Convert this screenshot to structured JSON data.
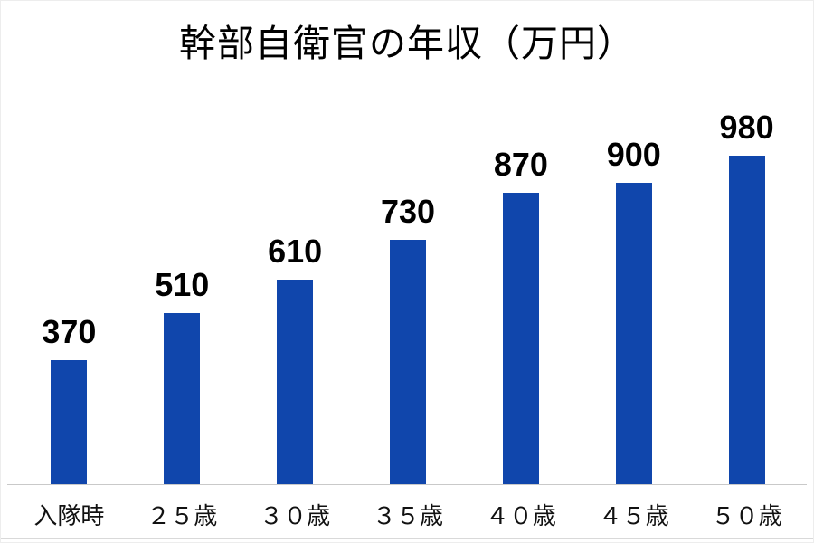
{
  "title": "幹部自衛官の年収（万円）",
  "colors": {
    "bar": "#1046ac",
    "axis_line": "#c9c9c9",
    "value_label": "#000000",
    "category_label": "#111111",
    "background": "#ffffff"
  },
  "chart_data": {
    "type": "bar",
    "title": "幹部自衛官の年収（万円）",
    "categories": [
      "入隊時",
      "２５歳",
      "３０歳",
      "３５歳",
      "４０歳",
      "４５歳",
      "５０歳"
    ],
    "values": [
      370,
      510,
      610,
      730,
      870,
      900,
      980
    ],
    "unit": "万円",
    "xlabel": "",
    "ylabel": "",
    "ylim": [
      0,
      1000
    ],
    "grid": false,
    "legend": false,
    "data_labels": true,
    "bar_color": "#1046ac"
  }
}
